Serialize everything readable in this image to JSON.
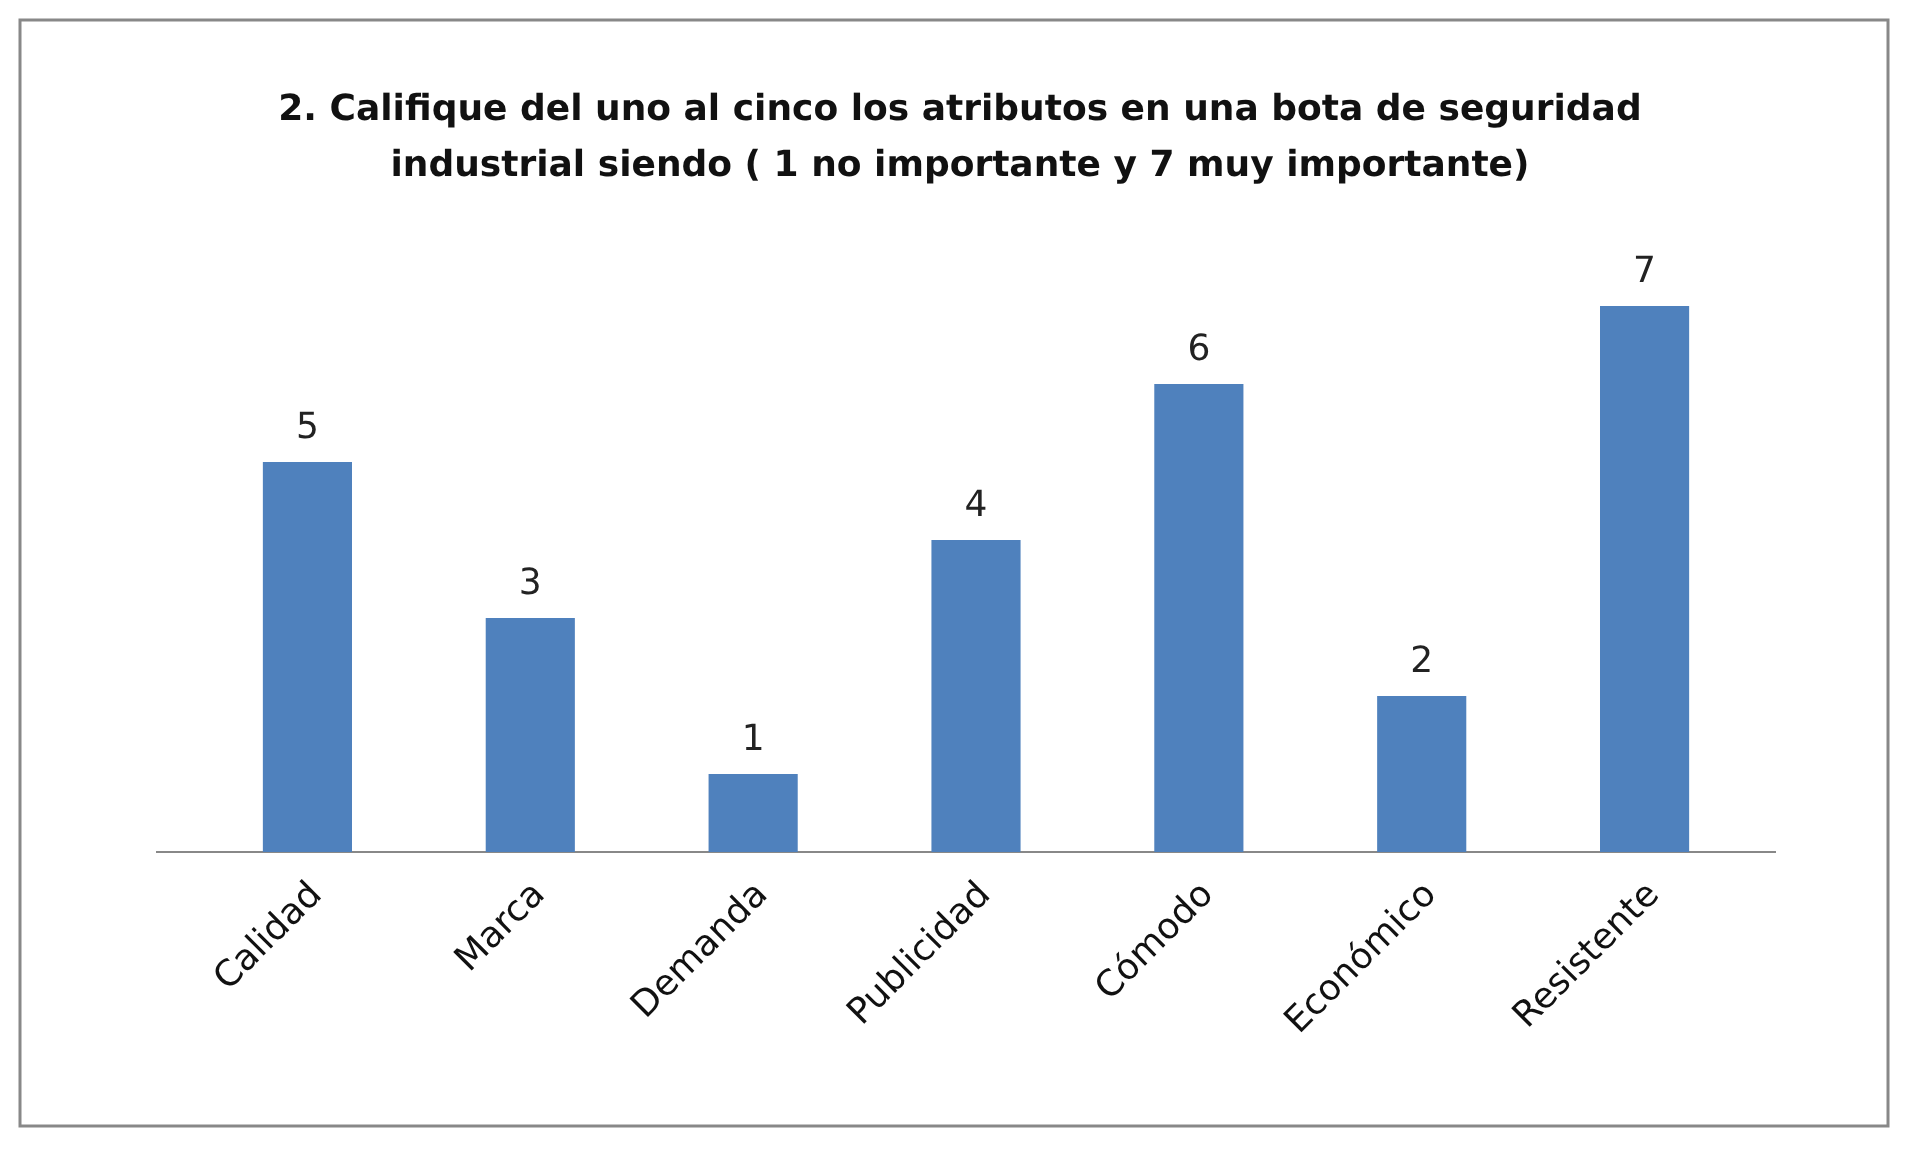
{
  "chart_data": {
    "type": "bar",
    "title": "2. Califique del uno al cinco los atributos  en una bota de seguridad industrial siendo ( 1 no importante y 7 muy importante)",
    "categories": [
      "Calidad",
      "Marca",
      "Demanda",
      "Publicidad",
      "Cómodo",
      "Económico",
      "Resistente"
    ],
    "values": [
      5,
      3,
      1,
      4,
      6,
      2,
      7
    ],
    "color": "#4f81bd",
    "data_labels": true
  }
}
